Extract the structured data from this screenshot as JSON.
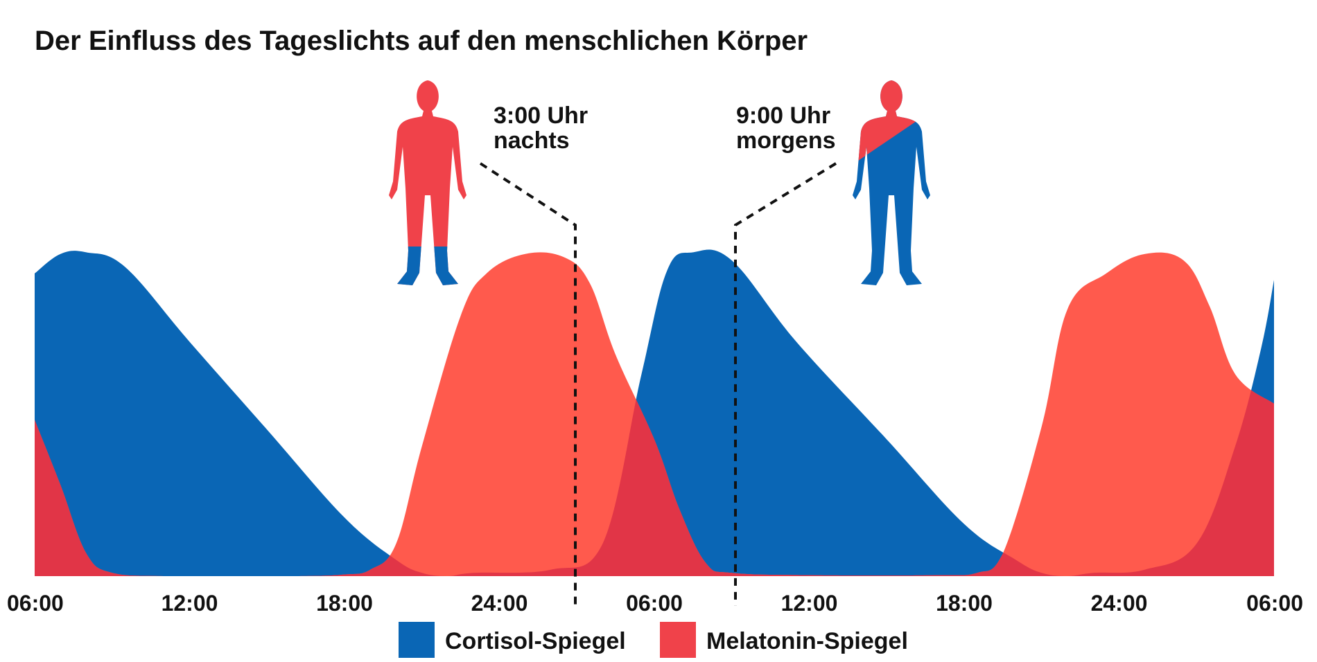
{
  "chart_data": {
    "type": "area",
    "title": "Der Einfluss des Tageslichts auf den menschlichen Körper",
    "xlabel": "",
    "ylabel": "",
    "x_hours": [
      0,
      3,
      6,
      9,
      12,
      15,
      18,
      21,
      24,
      27,
      30,
      33,
      36,
      39,
      42,
      45,
      48
    ],
    "tick_labels": [
      "06:00",
      "12:00",
      "18:00",
      "24:00",
      "06:00",
      "12:00",
      "18:00",
      "24:00",
      "06:00"
    ],
    "tick_hours": [
      0,
      6,
      12,
      18,
      24,
      30,
      36,
      42,
      48
    ],
    "ylim": [
      0,
      100
    ],
    "grid": false,
    "legend_position": "bottom-center",
    "series": [
      {
        "name": "Cortisol-Spiegel",
        "color": "#0a66b5",
        "key": "cortisol",
        "points": [
          [
            0,
            93
          ],
          [
            1.0,
            99
          ],
          [
            2.0,
            99.5
          ],
          [
            3.5,
            95
          ],
          [
            6,
            72
          ],
          [
            9,
            45
          ],
          [
            12,
            18
          ],
          [
            14,
            5
          ],
          [
            15,
            1
          ],
          [
            16,
            0
          ],
          [
            17,
            1
          ],
          [
            20,
            2
          ],
          [
            22,
            10
          ],
          [
            23.5,
            62
          ],
          [
            24.5,
            94
          ],
          [
            25.5,
            99.5
          ],
          [
            27,
            97
          ],
          [
            29.5,
            72
          ],
          [
            33,
            42
          ],
          [
            36,
            16
          ],
          [
            38,
            5
          ],
          [
            39,
            1
          ],
          [
            40,
            0
          ],
          [
            41,
            1
          ],
          [
            43,
            2
          ],
          [
            45,
            10
          ],
          [
            46.5,
            40
          ],
          [
            47.5,
            70
          ],
          [
            48,
            91
          ]
        ]
      },
      {
        "name": "Melatonin-Spiegel",
        "color": "#f0424a",
        "key": "melatonin",
        "points": [
          [
            0,
            48
          ],
          [
            1,
            28
          ],
          [
            2,
            7
          ],
          [
            3,
            1
          ],
          [
            5,
            0
          ],
          [
            10,
            0
          ],
          [
            12,
            0.5
          ],
          [
            13,
            2
          ],
          [
            14,
            10
          ],
          [
            15,
            40
          ],
          [
            16.5,
            80
          ],
          [
            17.5,
            93
          ],
          [
            19,
            99
          ],
          [
            20.5,
            98
          ],
          [
            21.5,
            90
          ],
          [
            22.5,
            68
          ],
          [
            24,
            42
          ],
          [
            25,
            20
          ],
          [
            26,
            4
          ],
          [
            27,
            1
          ],
          [
            30,
            0.3
          ],
          [
            35,
            0.3
          ],
          [
            36.5,
            1
          ],
          [
            37.5,
            7
          ],
          [
            39,
            46
          ],
          [
            40,
            82
          ],
          [
            41.5,
            93
          ],
          [
            43,
            99
          ],
          [
            44.5,
            97
          ],
          [
            45.5,
            83
          ],
          [
            46.5,
            62
          ],
          [
            48,
            53
          ]
        ]
      }
    ],
    "legend": [
      {
        "name": "Cortisol-Spiegel",
        "color": "#0a66b5"
      },
      {
        "name": "Melatonin-Spiegel",
        "color": "#f0424a"
      }
    ],
    "annotations": [
      {
        "key": "a3",
        "hour": 20.5,
        "line1": "3:00 Uhr",
        "line2": "nachts",
        "figure": "mostly-red-figure",
        "color_top": "#f0424a",
        "color_feet": "#0a66b5"
      },
      {
        "key": "a9",
        "hour": 26.7,
        "line1": "9:00 Uhr",
        "line2": "morgens",
        "figure": "mostly-blue-figure",
        "color_top": "#f0424a",
        "color_body": "#0a66b5"
      }
    ],
    "overlap_color": "#e13547",
    "melatonin_light_color": "#ff5a4d"
  }
}
